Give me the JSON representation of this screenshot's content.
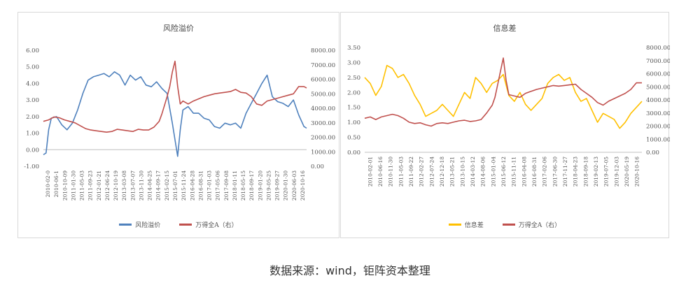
{
  "chart_data": [
    {
      "type": "line",
      "title": "风险溢价",
      "xlabel": "",
      "ylabel": "",
      "x_ticks": [
        "2010-02-0",
        "2010-06-1",
        "2010-10-09",
        "2011-01-30",
        "2011-05-03",
        "2011-09-23",
        "2012-01-21",
        "2012-06-24",
        "2012-10-19",
        "2013-03-08",
        "2013-07-07",
        "2013-11-30",
        "2014-04-25",
        "2014-09-17",
        "2015-02-15",
        "2015-07-01",
        "2015-11-24",
        "2016-04-28",
        "2016-08-31",
        "2017-01-03",
        "2017-05-06",
        "2017-09-08",
        "2018-01-11",
        "2018-05-15",
        "2018-09-17",
        "2019-01-20",
        "2019-05-25",
        "2019-09-27",
        "2020-01-30",
        "2020-06-03",
        "2020-10-16"
      ],
      "ylim_left": [
        -1.0,
        6.0
      ],
      "y_ticks_left": [
        "-1.00",
        "0.00",
        "1.00",
        "2.00",
        "3.00",
        "4.00",
        "5.00",
        "6.00"
      ],
      "ylim_right": [
        0,
        8000
      ],
      "y_ticks_right": [
        "0.00",
        "1000.00",
        "2000.00",
        "3000.00",
        "4000.00",
        "5000.00",
        "6000.00",
        "7000.00",
        "8000.00"
      ],
      "grid": false,
      "legend": "bottom",
      "series": [
        {
          "name": "风险溢价",
          "axis": "left",
          "color": "#4f81bd",
          "x": [
            0.0,
            0.01,
            0.02,
            0.03,
            0.05,
            0.07,
            0.09,
            0.11,
            0.13,
            0.15,
            0.17,
            0.19,
            0.21,
            0.23,
            0.25,
            0.27,
            0.29,
            0.31,
            0.33,
            0.35,
            0.37,
            0.39,
            0.41,
            0.43,
            0.45,
            0.47,
            0.49,
            0.5,
            0.51,
            0.52,
            0.53,
            0.55,
            0.57,
            0.59,
            0.61,
            0.63,
            0.65,
            0.67,
            0.69,
            0.71,
            0.73,
            0.75,
            0.77,
            0.79,
            0.81,
            0.83,
            0.85,
            0.87,
            0.89,
            0.91,
            0.93,
            0.95,
            0.97,
            0.99,
            1.0
          ],
          "values": [
            -0.3,
            -0.2,
            1.2,
            1.9,
            2.0,
            1.5,
            1.2,
            1.6,
            2.4,
            3.4,
            4.2,
            4.4,
            4.5,
            4.6,
            4.4,
            4.7,
            4.5,
            3.9,
            4.5,
            4.2,
            4.4,
            3.9,
            3.8,
            4.1,
            3.7,
            3.4,
            1.6,
            0.6,
            -0.4,
            1.2,
            2.4,
            2.6,
            2.2,
            2.2,
            1.9,
            1.8,
            1.4,
            1.3,
            1.6,
            1.5,
            1.6,
            1.3,
            2.2,
            2.8,
            3.4,
            4.0,
            4.5,
            3.2,
            2.9,
            2.8,
            2.6,
            3.0,
            2.1,
            1.4,
            1.3
          ]
        },
        {
          "name": "万得全A（右）",
          "axis": "right",
          "color": "#c0504d",
          "x": [
            0.0,
            0.02,
            0.04,
            0.06,
            0.08,
            0.1,
            0.12,
            0.14,
            0.16,
            0.18,
            0.2,
            0.22,
            0.24,
            0.26,
            0.28,
            0.3,
            0.32,
            0.34,
            0.36,
            0.38,
            0.4,
            0.42,
            0.44,
            0.45,
            0.46,
            0.47,
            0.48,
            0.49,
            0.5,
            0.51,
            0.52,
            0.53,
            0.55,
            0.57,
            0.59,
            0.61,
            0.63,
            0.65,
            0.67,
            0.69,
            0.71,
            0.73,
            0.75,
            0.77,
            0.79,
            0.81,
            0.83,
            0.85,
            0.87,
            0.89,
            0.91,
            0.93,
            0.95,
            0.97,
            0.99,
            1.0
          ],
          "values": [
            3100,
            3200,
            3400,
            3350,
            3200,
            3100,
            3000,
            2800,
            2600,
            2500,
            2450,
            2400,
            2350,
            2400,
            2550,
            2500,
            2450,
            2400,
            2550,
            2500,
            2500,
            2700,
            3100,
            3600,
            4200,
            4800,
            5500,
            6500,
            7250,
            5500,
            4300,
            4500,
            4300,
            4500,
            4650,
            4800,
            4900,
            5000,
            5050,
            5100,
            5150,
            5300,
            5100,
            5050,
            4800,
            4300,
            4200,
            4500,
            4600,
            4700,
            4800,
            4900,
            5000,
            5500,
            5500,
            5400
          ]
        }
      ]
    },
    {
      "type": "line",
      "title": "信息差",
      "xlabel": "",
      "ylabel": "",
      "x_ticks": [
        "2010-02-01",
        "2010-06-16",
        "2010-11-30",
        "2011-05-03",
        "2011-09-22",
        "2012-02-27",
        "2012-07-24",
        "2012-12-18",
        "2013-05-21",
        "2013-10-15",
        "2014-03-12",
        "2014-08-06",
        "2015-01-04",
        "2015-06-12",
        "2015-11-11",
        "2016-04-08",
        "2016-08-31",
        "2017-02-06",
        "2017-06-30",
        "2017-11-27",
        "2018-04-23",
        "2018-09-18",
        "2019-02-13",
        "2019-07-05",
        "2019-12-03",
        "2020-05-19",
        "2020-10-16"
      ],
      "ylim_left": [
        0.0,
        3.5
      ],
      "y_ticks_left": [
        "0.00",
        "0.50",
        "1.00",
        "1.50",
        "2.00",
        "2.50",
        "3.00",
        "3.50"
      ],
      "ylim_right": [
        0,
        8000
      ],
      "y_ticks_right": [
        "0.00",
        "1000.00",
        "2000.00",
        "3000.00",
        "4000.00",
        "5000.00",
        "6000.00",
        "7000.00",
        "8000.00"
      ],
      "grid": false,
      "legend": "bottom",
      "series": [
        {
          "name": "信息差",
          "axis": "left",
          "color": "#ffc000",
          "x": [
            0.0,
            0.02,
            0.04,
            0.06,
            0.08,
            0.1,
            0.12,
            0.14,
            0.16,
            0.18,
            0.2,
            0.22,
            0.24,
            0.26,
            0.28,
            0.3,
            0.32,
            0.34,
            0.36,
            0.38,
            0.4,
            0.42,
            0.44,
            0.46,
            0.48,
            0.5,
            0.52,
            0.54,
            0.56,
            0.58,
            0.6,
            0.62,
            0.64,
            0.66,
            0.68,
            0.7,
            0.72,
            0.74,
            0.76,
            0.78,
            0.8,
            0.82,
            0.84,
            0.86,
            0.88,
            0.9,
            0.92,
            0.94,
            0.96,
            0.98,
            1.0
          ],
          "values": [
            2.5,
            2.3,
            1.9,
            2.2,
            2.9,
            2.8,
            2.5,
            2.6,
            2.3,
            1.9,
            1.6,
            1.2,
            1.3,
            1.4,
            1.6,
            1.4,
            1.2,
            1.6,
            2.0,
            1.8,
            2.5,
            2.3,
            2.0,
            2.3,
            2.4,
            2.6,
            1.9,
            1.7,
            2.0,
            1.6,
            1.4,
            1.6,
            1.8,
            2.3,
            2.5,
            2.6,
            2.4,
            2.5,
            2.0,
            1.7,
            1.8,
            1.4,
            1.0,
            1.3,
            1.2,
            1.1,
            0.8,
            1.0,
            1.3,
            1.5,
            1.7
          ]
        },
        {
          "name": "万得全A（右）",
          "axis": "right",
          "color": "#c0504d",
          "x": [
            0.0,
            0.02,
            0.04,
            0.06,
            0.08,
            0.1,
            0.12,
            0.14,
            0.16,
            0.18,
            0.2,
            0.22,
            0.24,
            0.26,
            0.28,
            0.3,
            0.32,
            0.34,
            0.36,
            0.38,
            0.4,
            0.42,
            0.44,
            0.46,
            0.47,
            0.48,
            0.49,
            0.5,
            0.51,
            0.52,
            0.54,
            0.56,
            0.58,
            0.6,
            0.62,
            0.64,
            0.66,
            0.68,
            0.7,
            0.72,
            0.74,
            0.76,
            0.78,
            0.8,
            0.82,
            0.84,
            0.86,
            0.88,
            0.9,
            0.92,
            0.94,
            0.96,
            0.98,
            1.0
          ],
          "values": [
            2600,
            2700,
            2500,
            2700,
            2800,
            2900,
            2800,
            2600,
            2300,
            2200,
            2250,
            2100,
            2000,
            2200,
            2250,
            2200,
            2300,
            2400,
            2450,
            2350,
            2400,
            2500,
            3000,
            3600,
            4200,
            5200,
            6200,
            7200,
            5500,
            4400,
            4300,
            4200,
            4500,
            4650,
            4800,
            4900,
            5000,
            5100,
            5050,
            5100,
            5150,
            5200,
            4800,
            4500,
            4200,
            3800,
            3600,
            3900,
            4100,
            4300,
            4500,
            4800,
            5300,
            5300
          ]
        }
      ]
    }
  ],
  "caption": "数据来源：wind，钜阵资本整理"
}
